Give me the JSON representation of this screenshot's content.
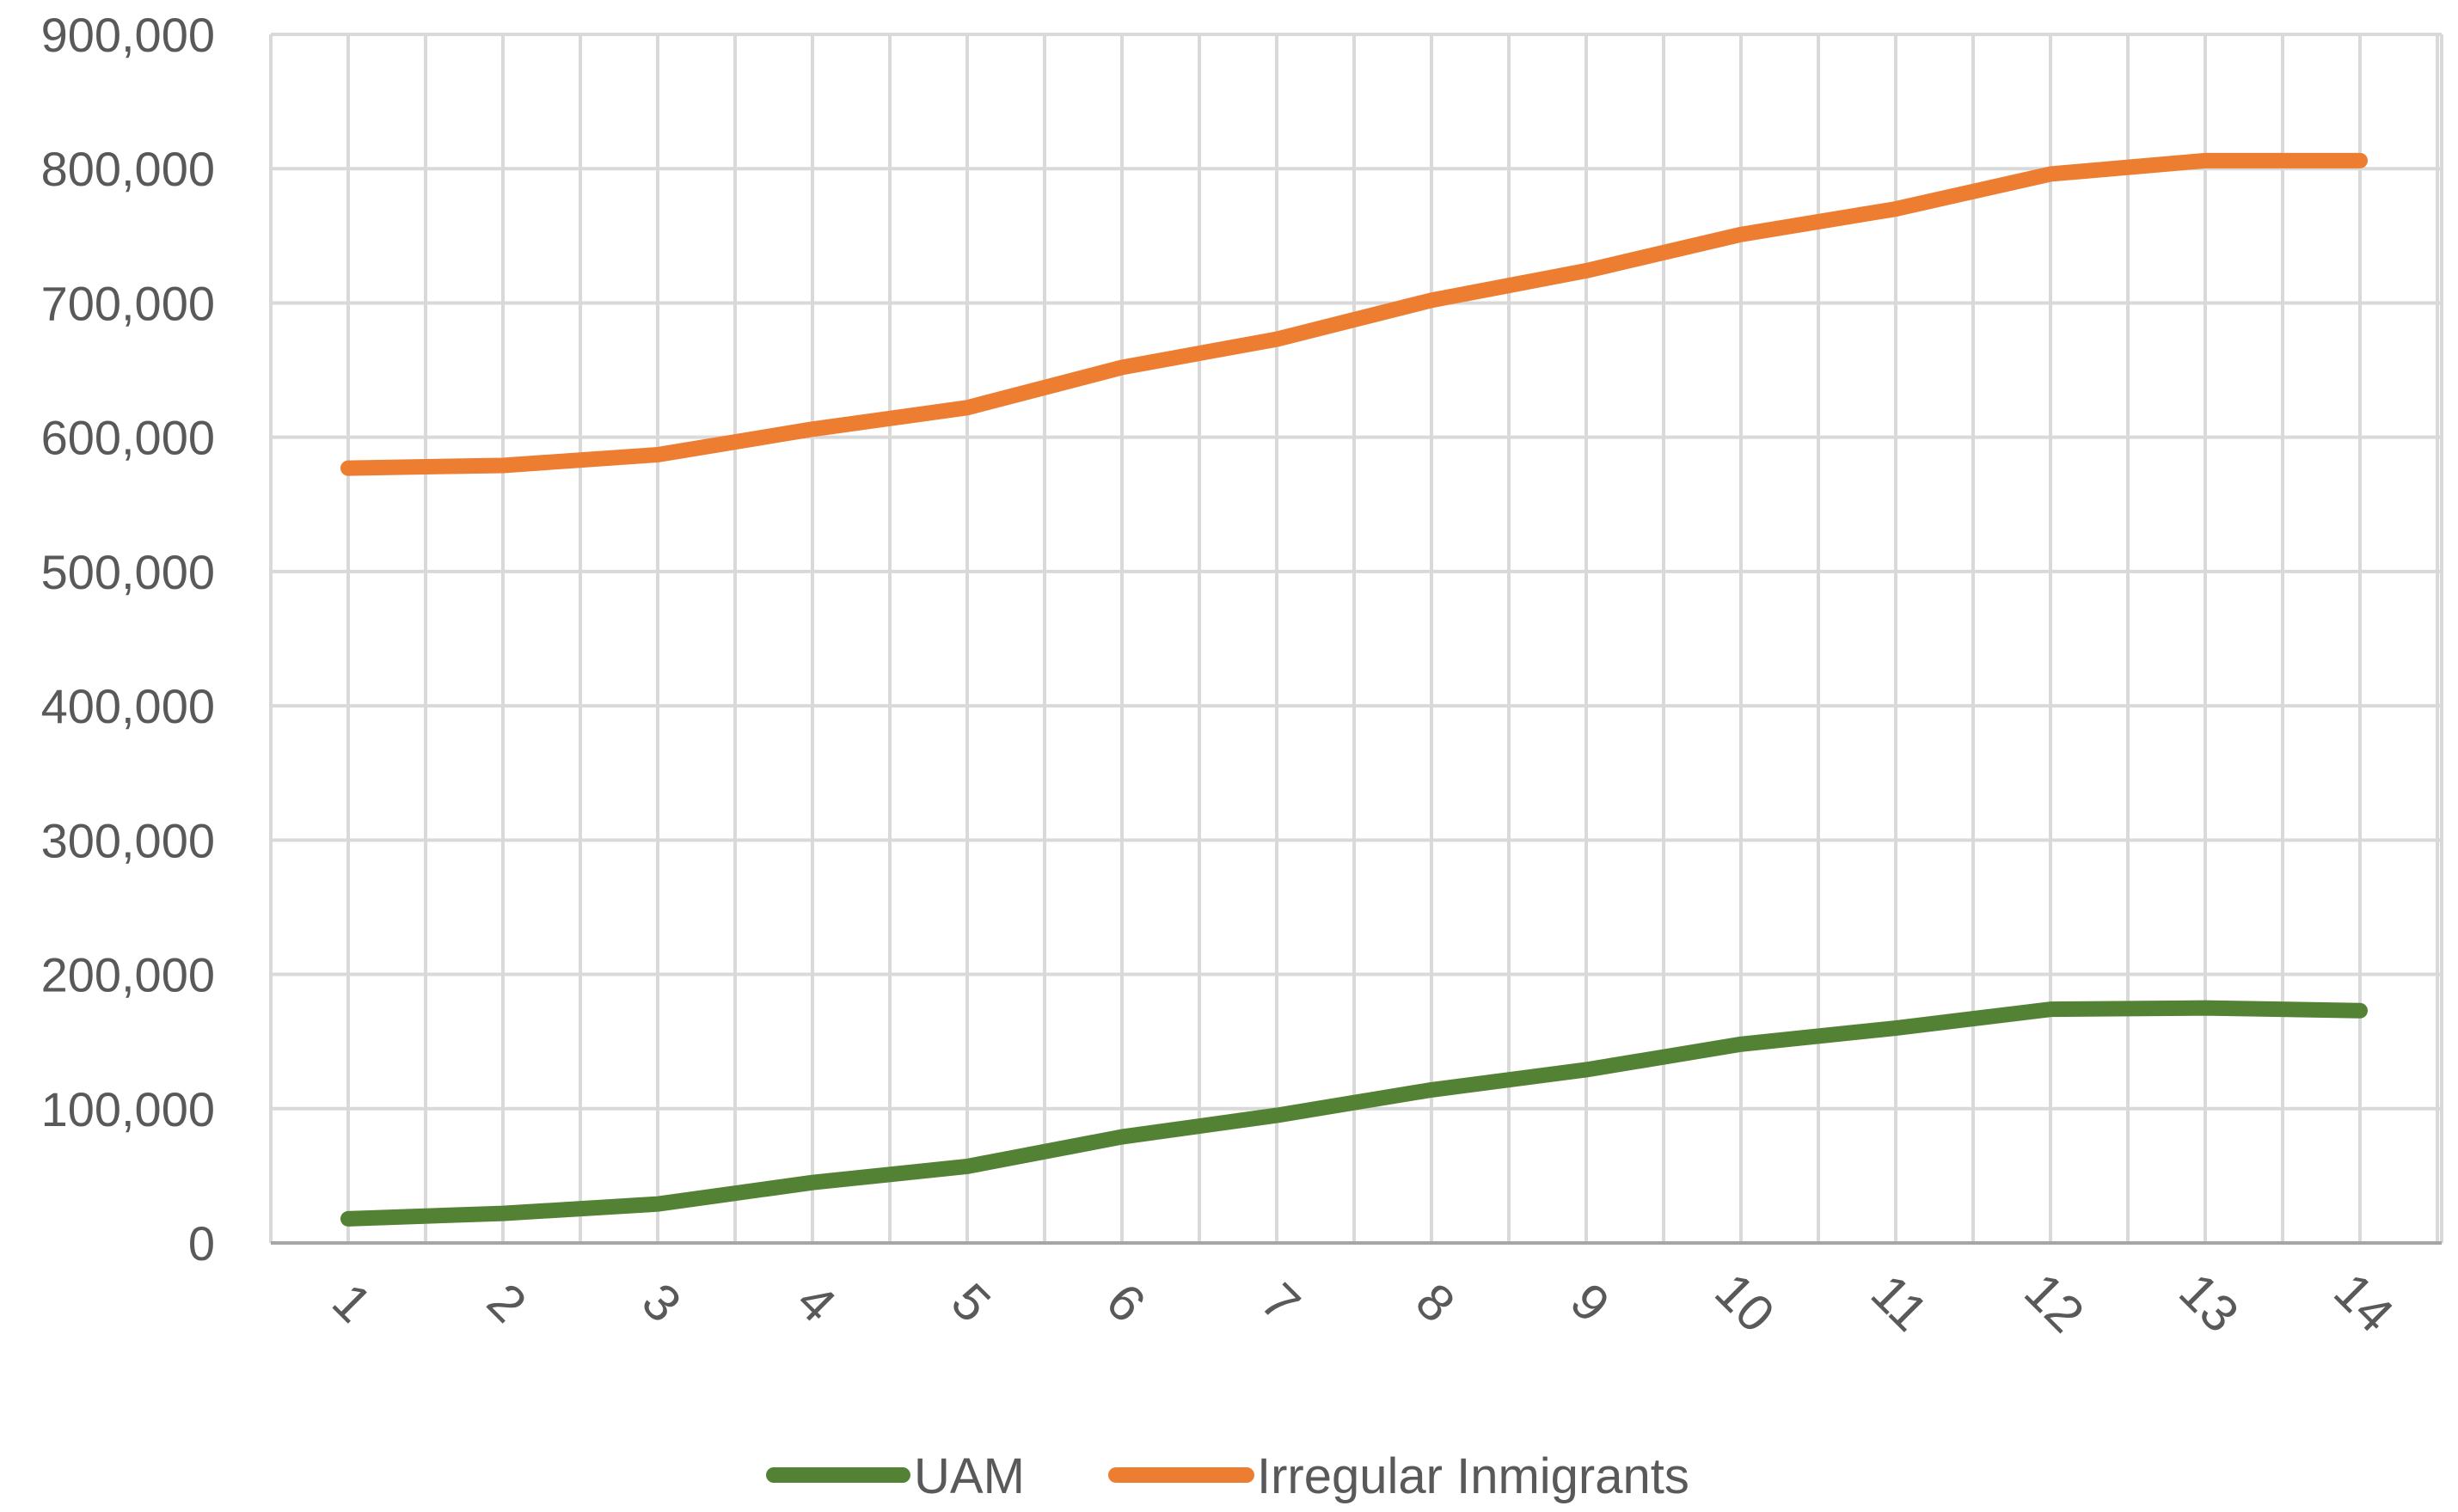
{
  "chart_data": {
    "type": "line",
    "title": "",
    "xlabel": "",
    "ylabel": "",
    "categories": [
      "1",
      "2",
      "3",
      "4",
      "5",
      "6",
      "7",
      "8",
      "9",
      "10",
      "11",
      "12",
      "13",
      "14"
    ],
    "ylim": [
      0,
      900000
    ],
    "yticks": [
      0,
      100000,
      200000,
      300000,
      400000,
      500000,
      600000,
      700000,
      800000,
      900000
    ],
    "ytick_labels": [
      "0",
      "100,000",
      "200,000",
      "300,000",
      "400,000",
      "500,000",
      "600,000",
      "700,000",
      "800,000",
      "900,000"
    ],
    "grid": true,
    "legend_position": "bottom",
    "series": [
      {
        "name": "UAM",
        "color": "#548235",
        "values": [
          18000,
          22000,
          29000,
          45000,
          57000,
          79000,
          95000,
          114000,
          129000,
          148000,
          160000,
          174000,
          175000,
          173000
        ]
      },
      {
        "name": "Irregular Inmigrants",
        "color": "#ED7D31",
        "values": [
          577000,
          579000,
          587000,
          606000,
          622000,
          652000,
          673000,
          702000,
          724000,
          751000,
          770000,
          796000,
          806000,
          806000
        ]
      }
    ],
    "colors": {
      "grid": "#D9D9D9",
      "axis": "#A6A6A6",
      "text": "#595959",
      "background": "#FFFFFF"
    }
  }
}
